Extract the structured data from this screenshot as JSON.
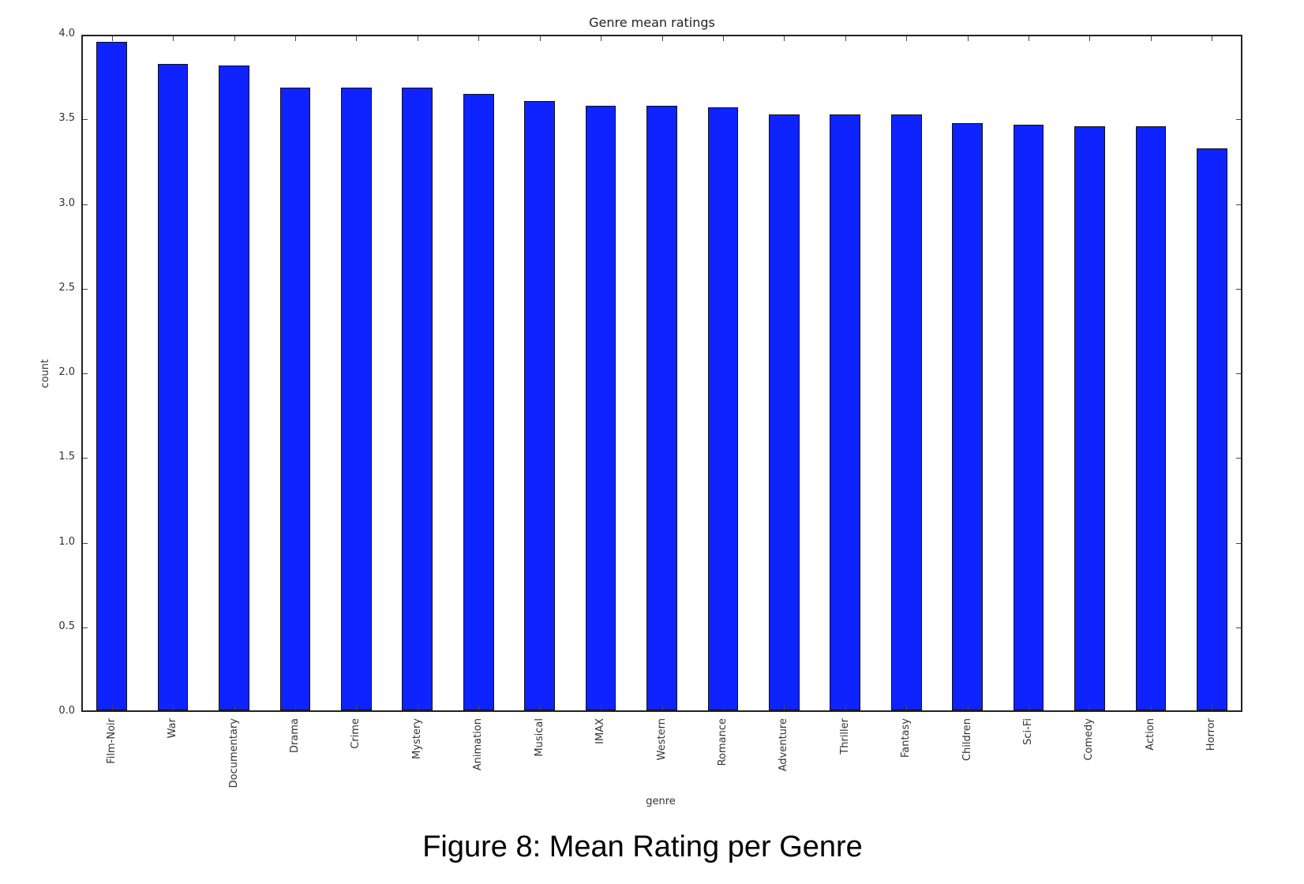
{
  "chart_data": {
    "type": "bar",
    "title": "Genre mean ratings",
    "xlabel": "genre",
    "ylabel": "count",
    "ylim": [
      0,
      4.0
    ],
    "yticks": [
      "0.0",
      "0.5",
      "1.0",
      "1.5",
      "2.0",
      "2.5",
      "3.0",
      "3.5",
      "4.0"
    ],
    "grid": false,
    "legend": null,
    "bar_color": "#0f23ff",
    "categories": [
      "Film-Noir",
      "War",
      "Documentary",
      "Drama",
      "Crime",
      "Mystery",
      "Animation",
      "Musical",
      "IMAX",
      "Western",
      "Romance",
      "Adventure",
      "Thriller",
      "Fantasy",
      "Children",
      "Sci-Fi",
      "Comedy",
      "Action",
      "Horror"
    ],
    "values": [
      3.95,
      3.82,
      3.81,
      3.68,
      3.68,
      3.68,
      3.64,
      3.6,
      3.57,
      3.57,
      3.56,
      3.52,
      3.52,
      3.52,
      3.47,
      3.46,
      3.45,
      3.45,
      3.32
    ]
  },
  "caption": "Figure 8: Mean Rating per Genre"
}
